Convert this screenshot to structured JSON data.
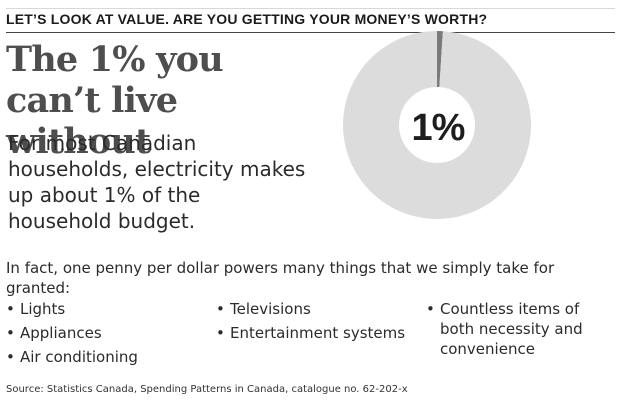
{
  "kicker": "LET’S LOOK AT VALUE. ARE YOU GETTING YOUR MONEY’S WORTH?",
  "headline": "The 1% you can’t live without",
  "lede": "For most Canadian households, electricity makes up about 1% of the household budget.",
  "intro": "In fact, one penny per dollar powers many things that we simply take for granted:",
  "bullet_symbol": "•",
  "list": {
    "column_1": [
      "Lights",
      "Appliances",
      "Air conditioning"
    ],
    "column_2": [
      "Televisions",
      "Entertainment systems"
    ],
    "column_3": [
      "Countless items of both necessity and convenience"
    ]
  },
  "source": "Source: Statistics Canada, Spending Patterns in Canada, catalogue no. 62-202-x",
  "chart_data": {
    "type": "pie",
    "title": "",
    "center_label": "1%",
    "slices": [
      {
        "label": "",
        "value": 1,
        "color": "#7a7a7a"
      },
      {
        "label": "",
        "value": 99,
        "color": "#dcdcdc"
      }
    ],
    "legend": "none"
  }
}
